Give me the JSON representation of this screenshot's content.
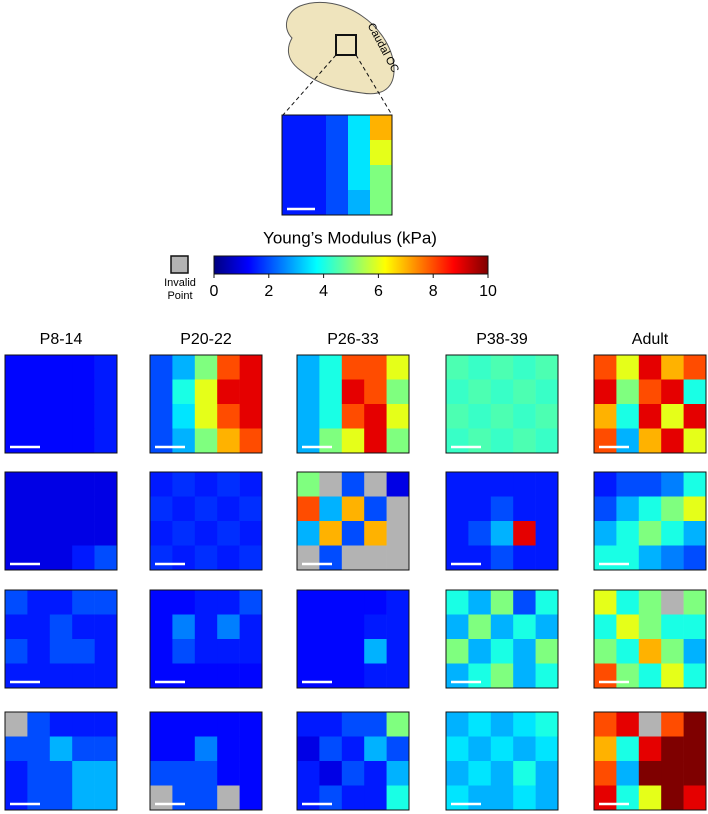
{
  "chart_data": {
    "type": "heatmap",
    "colorbar_title": "Young’s Modulus (kPa)",
    "clim": [
      0,
      10
    ],
    "cticks": [
      0,
      2,
      4,
      6,
      8,
      10
    ],
    "colormap": [
      "#00007f",
      "#0000ff",
      "#007fff",
      "#00ffff",
      "#7fff7f",
      "#ffff00",
      "#ff7f00",
      "#ff0000",
      "#7f0000"
    ],
    "invalid_label": "Invalid Point",
    "invalid_color": "#b3b3b3",
    "inset_label": "Caudal OC",
    "inset": [
      [
        1.5,
        1.5,
        2,
        3.5,
        7
      ],
      [
        1.5,
        1.5,
        2,
        3.5,
        6
      ],
      [
        1.5,
        1.5,
        2,
        3.5,
        5
      ],
      [
        1.5,
        1.5,
        2,
        3,
        5
      ]
    ],
    "columns": [
      "P8-14",
      "P20-22",
      "P26-33",
      "P38-39",
      "Adult"
    ],
    "panels": [
      [
        [
          [
            1.3,
            1.3,
            1.3,
            1.3,
            1.5
          ],
          [
            1.3,
            1.3,
            1.3,
            1.3,
            1.5
          ],
          [
            1.3,
            1.3,
            1.3,
            1.3,
            1.5
          ],
          [
            1.3,
            1.3,
            1.3,
            1.3,
            1.5
          ]
        ],
        [
          [
            2,
            3,
            5,
            8,
            9
          ],
          [
            2,
            4,
            6,
            9,
            9
          ],
          [
            2,
            3.5,
            6,
            8,
            9
          ],
          [
            2,
            3,
            5,
            7,
            8
          ]
        ],
        [
          [
            3,
            4,
            8,
            8,
            6
          ],
          [
            3,
            4,
            9,
            8,
            5
          ],
          [
            3,
            4,
            8,
            9,
            6
          ],
          [
            3,
            5,
            6,
            9,
            5
          ]
        ],
        [
          [
            4.5,
            4.3,
            4.5,
            4.3,
            4.5
          ],
          [
            4.3,
            4.5,
            4.3,
            4.5,
            4.3
          ],
          [
            4.5,
            4.3,
            4.5,
            4.3,
            4.5
          ],
          [
            4.3,
            4.5,
            4.3,
            4.5,
            4.3
          ]
        ],
        [
          [
            8,
            6,
            9,
            7,
            8
          ],
          [
            9,
            5,
            8,
            9,
            4
          ],
          [
            7,
            4,
            9,
            6,
            9
          ],
          [
            8,
            3,
            7,
            9,
            6
          ]
        ]
      ],
      [
        [
          [
            1,
            1,
            1,
            1,
            1
          ],
          [
            1,
            1,
            1,
            1,
            1
          ],
          [
            1,
            1,
            1,
            1,
            1
          ],
          [
            1,
            1,
            1,
            1.5,
            2
          ]
        ],
        [
          [
            1.5,
            1.7,
            1.5,
            1.7,
            1.5
          ],
          [
            1.7,
            1.5,
            1.7,
            1.5,
            1.7
          ],
          [
            1.5,
            1.7,
            1.5,
            1.7,
            1.5
          ],
          [
            1.7,
            1.5,
            1.7,
            1.5,
            1.7
          ]
        ],
        [
          [
            5,
            null,
            2,
            null,
            1
          ],
          [
            8,
            3,
            7,
            2,
            null
          ],
          [
            3,
            7,
            2,
            7,
            null
          ],
          [
            null,
            2,
            null,
            null,
            null
          ]
        ],
        [
          [
            1.5,
            1.5,
            1.5,
            1.5,
            1.5
          ],
          [
            1.5,
            1.5,
            2,
            1.5,
            1.5
          ],
          [
            1.5,
            2,
            3,
            9,
            1.5
          ],
          [
            1.5,
            1.5,
            2,
            1.5,
            1.5
          ]
        ],
        [
          [
            1.5,
            2,
            2,
            2.5,
            4
          ],
          [
            2,
            3,
            4,
            5,
            6
          ],
          [
            3,
            4,
            5,
            4,
            3
          ],
          [
            4,
            4,
            3,
            2.5,
            2
          ]
        ]
      ],
      [
        [
          [
            2,
            1.5,
            1.5,
            2,
            2
          ],
          [
            1.5,
            1.5,
            2,
            1.5,
            1.5
          ],
          [
            2,
            1.5,
            2,
            2,
            1.5
          ],
          [
            1.5,
            1.5,
            1.5,
            1.5,
            1.5
          ]
        ],
        [
          [
            1.3,
            1.3,
            1.5,
            1.5,
            2
          ],
          [
            1.3,
            2.5,
            1.5,
            2.5,
            1.5
          ],
          [
            1.3,
            2,
            1.5,
            1.5,
            1.5
          ],
          [
            1.3,
            1.3,
            1.3,
            1.3,
            1.3
          ]
        ],
        [
          [
            1.3,
            1.3,
            1.3,
            1.3,
            1.5
          ],
          [
            1.3,
            1.3,
            1.3,
            1.5,
            1.5
          ],
          [
            1.3,
            1.3,
            1.3,
            3,
            1.5
          ],
          [
            1.3,
            1.3,
            1.3,
            1.5,
            1.5
          ]
        ],
        [
          [
            4,
            3,
            5,
            2,
            4
          ],
          [
            3,
            5,
            3,
            4,
            3
          ],
          [
            5,
            3,
            4,
            3,
            5
          ],
          [
            3,
            4,
            5,
            3,
            4
          ]
        ],
        [
          [
            6,
            4,
            5,
            null,
            5
          ],
          [
            4,
            6,
            5,
            4,
            4
          ],
          [
            5,
            4,
            7,
            5,
            3
          ],
          [
            8,
            5,
            4,
            6,
            4
          ]
        ]
      ],
      [
        [
          [
            null,
            2,
            1.5,
            1.5,
            1.5
          ],
          [
            2,
            2,
            3,
            2,
            2
          ],
          [
            1.5,
            2,
            2,
            3,
            3
          ],
          [
            1.5,
            2,
            2,
            3,
            3
          ]
        ],
        [
          [
            1.3,
            1.3,
            1.3,
            1.3,
            1.3
          ],
          [
            1.3,
            1.3,
            2.5,
            1.3,
            1.3
          ],
          [
            2,
            2,
            2,
            1.3,
            1.3
          ],
          [
            null,
            2,
            2,
            null,
            1.3
          ]
        ],
        [
          [
            1.5,
            1.5,
            2,
            2,
            5
          ],
          [
            1,
            2,
            1.5,
            3,
            2
          ],
          [
            1.5,
            1,
            2,
            1.5,
            3
          ],
          [
            1.5,
            2,
            1.5,
            1.5,
            4
          ]
        ],
        [
          [
            3,
            3.5,
            3,
            3.5,
            4
          ],
          [
            3.5,
            3,
            3.5,
            3,
            3.5
          ],
          [
            3,
            3.5,
            3,
            4,
            3
          ],
          [
            3.5,
            3,
            3,
            3.5,
            3
          ]
        ],
        [
          [
            8,
            9,
            null,
            8,
            10
          ],
          [
            7,
            4,
            9,
            10,
            10
          ],
          [
            8,
            3,
            10,
            10,
            10
          ],
          [
            9,
            4,
            6,
            10,
            9
          ]
        ]
      ]
    ]
  }
}
